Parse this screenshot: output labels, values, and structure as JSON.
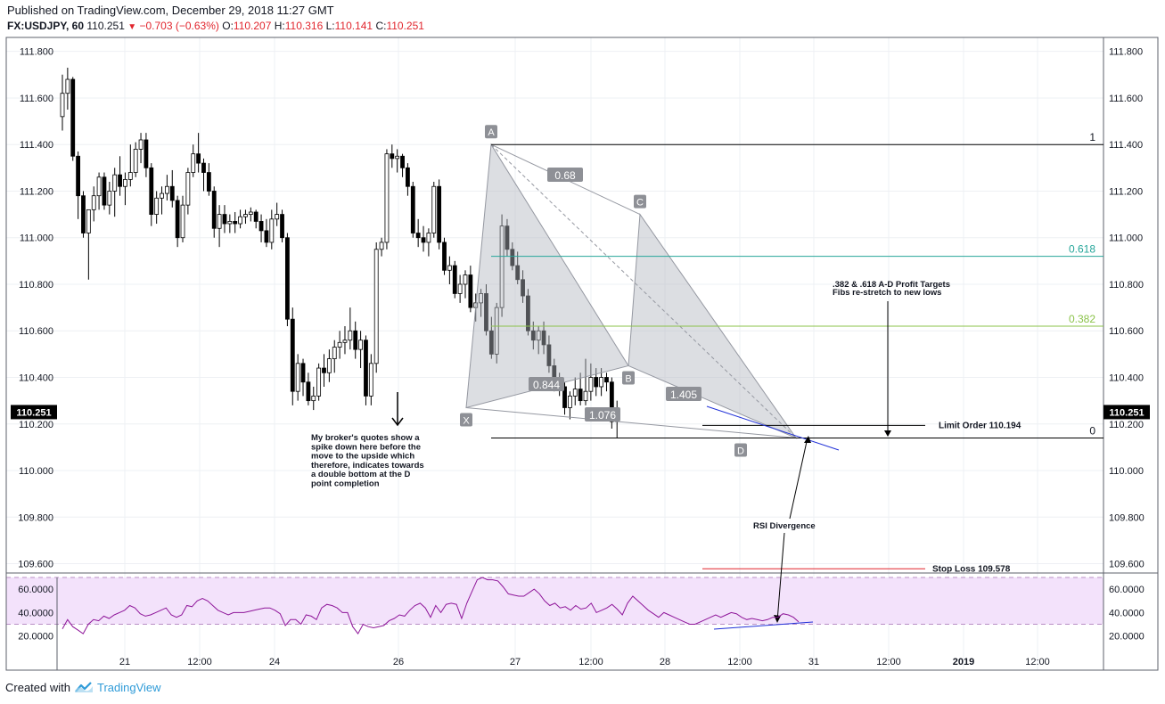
{
  "header": {
    "published": "Published on TradingView.com, December 29, 2018 11:27 GMT",
    "symbol": "FX:USDJPY, 60",
    "last": "110.251",
    "change": "−0.703 (−0.63%)",
    "o_label": "O:",
    "o_value": "110.207",
    "h_label": "H:",
    "h_value": "110.316",
    "l_label": "L:",
    "l_value": "110.141",
    "c_label": "C:",
    "c_value": "110.251"
  },
  "footer": {
    "created_with": "Created with",
    "brand": "TradingView"
  },
  "chart_data": [
    {
      "type": "candlestick",
      "symbol": "FX:USDJPY",
      "interval": "60",
      "ylim": [
        109.56,
        111.86
      ],
      "y_ticks": [
        "111.800",
        "111.600",
        "111.400",
        "111.200",
        "111.000",
        "110.800",
        "110.600",
        "110.400",
        "110.200",
        "110.000",
        "109.800",
        "109.600"
      ],
      "x_ticks": [
        "21",
        "12:00",
        "24",
        "26",
        "27",
        "12:00",
        "28",
        "12:00",
        "31",
        "12:00",
        "2019",
        "12:00"
      ],
      "last_price_label": "110.251",
      "candles": [
        [
          111.52,
          111.7,
          111.46,
          111.62
        ],
        [
          111.62,
          111.73,
          111.55,
          111.68
        ],
        [
          111.68,
          111.69,
          111.33,
          111.35
        ],
        [
          111.35,
          111.37,
          111.08,
          111.18
        ],
        [
          111.18,
          111.2,
          111.0,
          111.02
        ],
        [
          111.02,
          111.12,
          110.82,
          111.12
        ],
        [
          111.12,
          111.22,
          111.07,
          111.18
        ],
        [
          111.18,
          111.28,
          111.12,
          111.26
        ],
        [
          111.26,
          111.28,
          111.12,
          111.14
        ],
        [
          111.14,
          111.24,
          111.1,
          111.2
        ],
        [
          111.2,
          111.3,
          111.09,
          111.27
        ],
        [
          111.27,
          111.35,
          111.18,
          111.22
        ],
        [
          111.22,
          111.28,
          111.14,
          111.25
        ],
        [
          111.25,
          111.4,
          111.22,
          111.28
        ],
        [
          111.28,
          111.41,
          111.26,
          111.38
        ],
        [
          111.38,
          111.45,
          111.32,
          111.42
        ],
        [
          111.42,
          111.45,
          111.26,
          111.3
        ],
        [
          111.3,
          111.32,
          111.05,
          111.1
        ],
        [
          111.1,
          111.2,
          111.06,
          111.17
        ],
        [
          111.17,
          111.22,
          111.1,
          111.19
        ],
        [
          111.19,
          111.27,
          111.16,
          111.22
        ],
        [
          111.22,
          111.29,
          111.13,
          111.16
        ],
        [
          111.16,
          111.18,
          110.96,
          111.0
        ],
        [
          111.0,
          111.18,
          110.98,
          111.14
        ],
        [
          111.14,
          111.3,
          111.1,
          111.28
        ],
        [
          111.28,
          111.4,
          111.26,
          111.36
        ],
        [
          111.36,
          111.45,
          111.28,
          111.32
        ],
        [
          111.32,
          111.34,
          111.2,
          111.28
        ],
        [
          111.28,
          111.32,
          111.18,
          111.2
        ],
        [
          111.2,
          111.22,
          111.0,
          111.04
        ],
        [
          111.04,
          111.14,
          110.96,
          111.1
        ],
        [
          111.1,
          111.14,
          111.02,
          111.06
        ],
        [
          111.06,
          111.1,
          111.02,
          111.07
        ],
        [
          111.07,
          111.11,
          111.02,
          111.06
        ],
        [
          111.06,
          111.12,
          111.04,
          111.09
        ],
        [
          111.09,
          111.12,
          111.06,
          111.1
        ],
        [
          111.1,
          111.13,
          111.07,
          111.11
        ],
        [
          111.11,
          111.12,
          111.04,
          111.07
        ],
        [
          111.07,
          111.1,
          110.98,
          111.03
        ],
        [
          111.03,
          111.08,
          110.96,
          110.98
        ],
        [
          110.98,
          111.12,
          110.95,
          111.08
        ],
        [
          111.08,
          111.15,
          111.05,
          111.1
        ],
        [
          111.1,
          111.12,
          110.98,
          111.0
        ],
        [
          111.0,
          111.02,
          110.62,
          110.65
        ],
        [
          110.65,
          110.7,
          110.28,
          110.34
        ],
        [
          110.34,
          110.5,
          110.3,
          110.46
        ],
        [
          110.46,
          110.48,
          110.32,
          110.38
        ],
        [
          110.38,
          110.42,
          110.28,
          110.3
        ],
        [
          110.3,
          110.36,
          110.26,
          110.32
        ],
        [
          110.32,
          110.46,
          110.3,
          110.44
        ],
        [
          110.44,
          110.5,
          110.36,
          110.42
        ],
        [
          110.42,
          110.52,
          110.38,
          110.48
        ],
        [
          110.48,
          110.56,
          110.42,
          110.53
        ],
        [
          110.53,
          110.6,
          110.48,
          110.55
        ],
        [
          110.55,
          110.62,
          110.5,
          110.56
        ],
        [
          110.56,
          110.7,
          110.52,
          110.6
        ],
        [
          110.6,
          110.64,
          110.48,
          110.52
        ],
        [
          110.52,
          110.6,
          110.44,
          110.56
        ],
        [
          110.56,
          110.58,
          110.28,
          110.32
        ],
        [
          110.32,
          110.5,
          110.28,
          110.46
        ],
        [
          110.46,
          110.98,
          110.42,
          110.95
        ],
        [
          110.95,
          111.0,
          110.92,
          110.98
        ],
        [
          110.98,
          111.38,
          110.95,
          111.36
        ],
        [
          111.36,
          111.4,
          111.3,
          111.34
        ],
        [
          111.34,
          111.38,
          111.28,
          111.35
        ],
        [
          111.35,
          111.36,
          111.26,
          111.3
        ],
        [
          111.3,
          111.32,
          111.18,
          111.22
        ],
        [
          111.22,
          111.24,
          111.0,
          111.02
        ],
        [
          111.02,
          111.08,
          110.96,
          111.0
        ],
        [
          111.0,
          111.05,
          110.94,
          110.98
        ],
        [
          110.98,
          111.04,
          110.92,
          111.02
        ],
        [
          111.02,
          111.24,
          111.0,
          111.22
        ],
        [
          111.22,
          111.25,
          110.95,
          110.98
        ],
        [
          110.98,
          111.0,
          110.84,
          110.86
        ],
        [
          110.86,
          110.92,
          110.8,
          110.88
        ],
        [
          110.88,
          110.9,
          110.74,
          110.76
        ],
        [
          110.76,
          110.84,
          110.72,
          110.8
        ],
        [
          110.8,
          110.86,
          110.74,
          110.84
        ],
        [
          110.84,
          110.88,
          110.68,
          110.7
        ],
        [
          110.7,
          110.76,
          110.64,
          110.72
        ],
        [
          110.72,
          110.78,
          110.66,
          110.76
        ],
        [
          110.76,
          110.8,
          110.58,
          110.6
        ],
        [
          110.6,
          110.66,
          110.48,
          110.5
        ],
        [
          110.5,
          110.72,
          110.46,
          110.7
        ],
        [
          110.7,
          111.1,
          110.66,
          111.05
        ],
        [
          111.05,
          111.08,
          110.92,
          110.95
        ],
        [
          110.95,
          110.98,
          110.86,
          110.88
        ],
        [
          110.88,
          110.94,
          110.8,
          110.82
        ],
        [
          110.82,
          110.86,
          110.72,
          110.75
        ],
        [
          110.75,
          110.78,
          110.58,
          110.6
        ],
        [
          110.6,
          110.64,
          110.52,
          110.56
        ],
        [
          110.56,
          110.62,
          110.5,
          110.6
        ],
        [
          110.6,
          110.64,
          110.5,
          110.54
        ],
        [
          110.54,
          110.58,
          110.42,
          110.45
        ],
        [
          110.45,
          110.48,
          110.34,
          110.38
        ],
        [
          110.38,
          110.42,
          110.32,
          110.36
        ],
        [
          110.36,
          110.38,
          110.24,
          110.27
        ],
        [
          110.27,
          110.34,
          110.22,
          110.32
        ],
        [
          110.32,
          110.4,
          110.28,
          110.35
        ],
        [
          110.35,
          110.42,
          110.28,
          110.3
        ],
        [
          110.3,
          110.48,
          110.28,
          110.34
        ],
        [
          110.34,
          110.46,
          110.3,
          110.4
        ],
        [
          110.4,
          110.44,
          110.32,
          110.36
        ],
        [
          110.36,
          110.44,
          110.32,
          110.4
        ],
        [
          110.4,
          110.42,
          110.34,
          110.38
        ],
        [
          110.38,
          110.4,
          110.18,
          110.21
        ],
        [
          110.21,
          110.3,
          110.14,
          110.25
        ]
      ],
      "annotations": {
        "pattern_points": [
          {
            "label": "X",
            "price": 110.27
          },
          {
            "label": "A",
            "price": 111.4
          },
          {
            "label": "B",
            "price": 110.45
          },
          {
            "label": "C",
            "price": 111.1
          },
          {
            "label": "D",
            "price": 110.14
          }
        ],
        "ratios": [
          "0.68",
          "0.844",
          "1.405",
          "1.076"
        ],
        "fib_levels": [
          {
            "label": "1",
            "price": 111.4
          },
          {
            "label": "0.618",
            "price": 110.92,
            "color": "#26a69a"
          },
          {
            "label": "0.382",
            "price": 110.62,
            "color": "#8bc34a"
          },
          {
            "label": "0",
            "price": 110.14
          }
        ],
        "limit_order": {
          "label": "Limit Order 110.194",
          "price": 110.194
        },
        "stop_loss": {
          "label": "Stop Loss 109.578",
          "price": 109.578,
          "color": "#e1252d"
        },
        "notes": [
          {
            "lines": [
              ".382 & .618 A-D Profit Targets",
              "Fibs re-stretch to new lows"
            ]
          },
          {
            "lines": [
              "My broker's quotes show a",
              "spike down here before the",
              "move to the upside which",
              "therefore, indicates towards",
              "a double bottom at the D",
              "point completion"
            ]
          },
          {
            "lines": [
              "RSI Divergence"
            ]
          }
        ]
      }
    },
    {
      "type": "line",
      "name": "RSI",
      "ylim": [
        19,
        70
      ],
      "y_ticks": [
        "60.0000",
        "40.0000",
        "20.0000"
      ],
      "bands": [
        30,
        70
      ],
      "values": [
        26,
        34,
        28,
        25,
        22,
        30,
        34,
        33,
        37,
        35,
        38,
        40,
        42,
        46,
        44,
        39,
        37,
        38,
        40,
        42,
        44,
        38,
        36,
        38,
        46,
        45,
        50,
        52,
        50,
        46,
        42,
        40,
        38,
        40,
        40,
        40,
        41,
        42,
        43,
        44,
        44,
        42,
        39,
        29,
        34,
        34,
        30,
        38,
        37,
        34,
        44,
        47,
        46,
        44,
        40,
        40,
        28,
        22,
        30,
        28,
        27,
        28,
        29,
        33,
        35,
        38,
        37,
        42,
        46,
        48,
        44,
        36,
        46,
        40,
        47,
        48,
        47,
        35,
        48,
        58,
        68,
        70,
        68,
        68,
        67,
        62,
        56,
        55,
        54,
        54,
        57,
        60,
        56,
        50,
        46,
        48,
        44,
        45,
        42,
        46,
        43,
        44,
        48,
        40,
        42,
        44,
        47,
        43,
        38,
        48,
        54,
        50,
        46,
        42,
        39,
        36,
        40,
        38,
        36,
        34,
        32,
        30,
        30,
        32,
        34,
        36,
        38,
        36,
        38,
        40,
        39,
        36,
        34,
        35,
        34,
        33,
        34,
        36,
        36,
        39,
        38,
        36,
        32
      ],
      "divergence_points": [
        32,
        38,
        34,
        37
      ]
    }
  ]
}
